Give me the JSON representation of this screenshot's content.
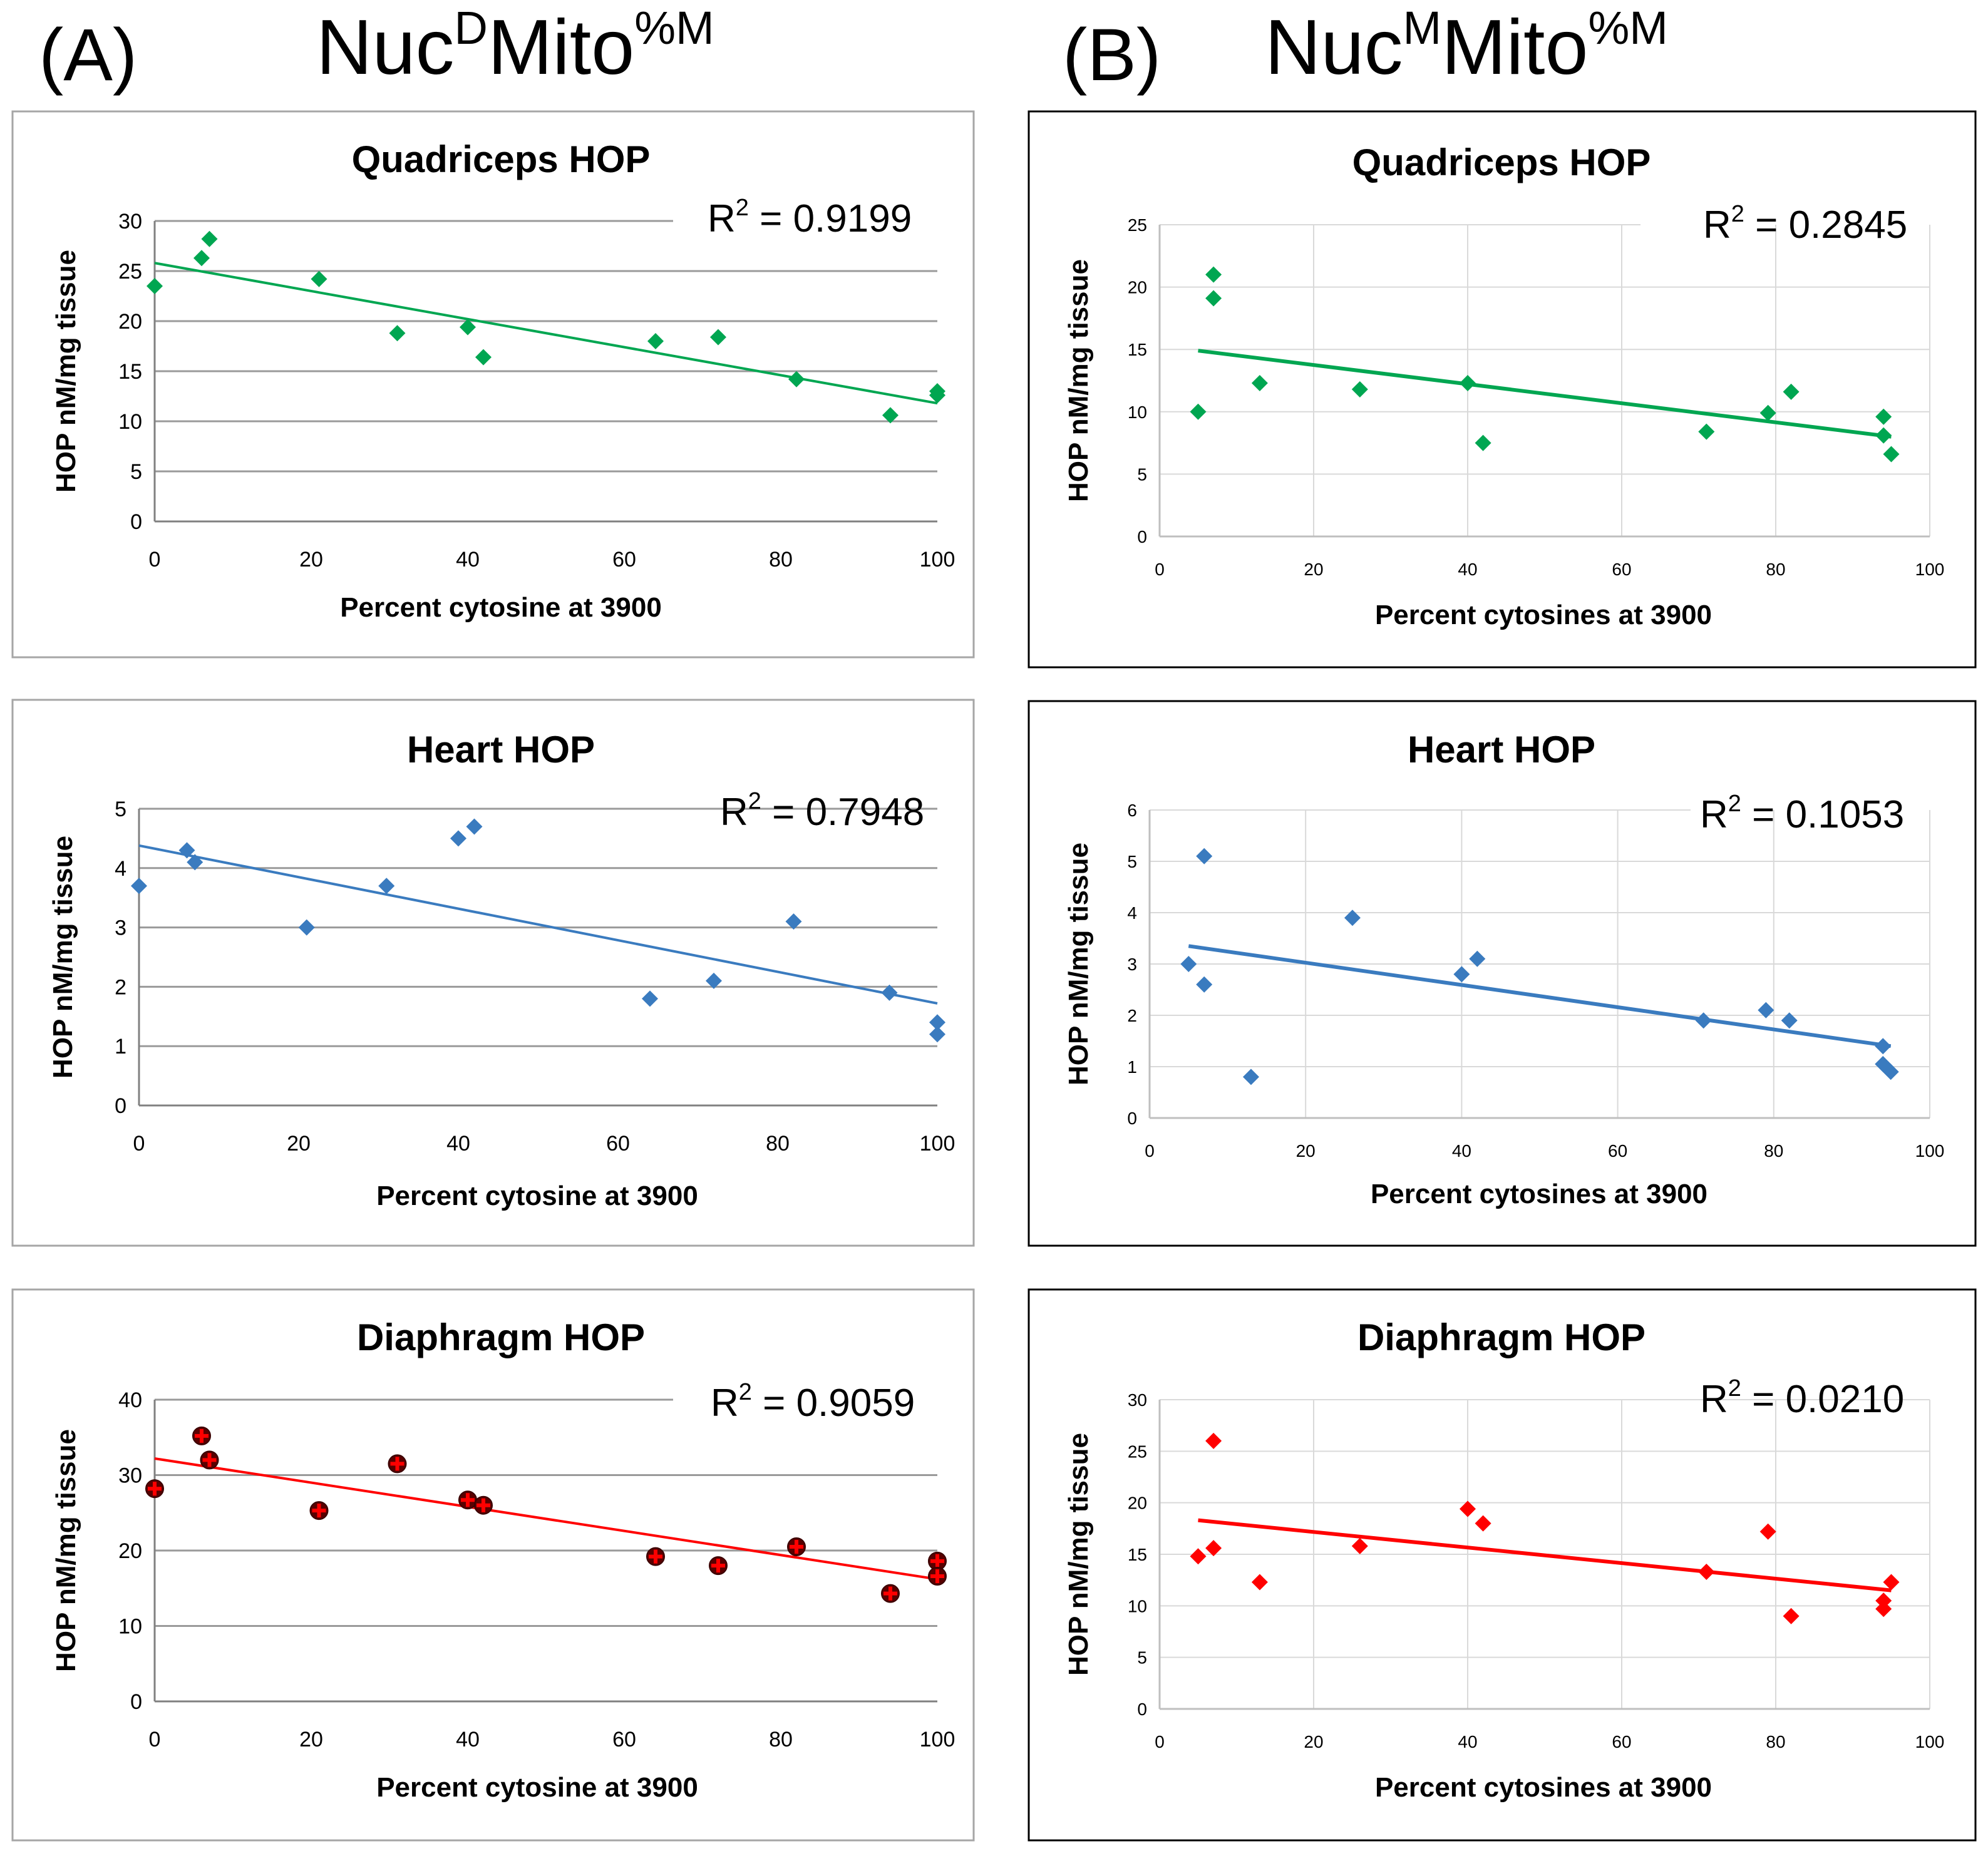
{
  "figure": {
    "panel_A": {
      "label": "(A)",
      "heading_base": "Nuc",
      "heading_sup1": "D",
      "heading_mid": "Mito",
      "heading_sup2": "%M"
    },
    "panel_B": {
      "label": "(B)",
      "heading_base": "Nuc",
      "heading_sup1": "M",
      "heading_mid": "Mito",
      "heading_sup2": "%M"
    }
  },
  "colors": {
    "green": "#00a651",
    "blue": "#3a7bbf",
    "red": "#ff0000",
    "frame_A": "#a6a6a6",
    "frame_B": "#000000",
    "grid": "#a0a0a0"
  },
  "chart_data": [
    {
      "id": "A-quad",
      "panel": "A",
      "type": "scatter",
      "style": "A",
      "title": "Quadriceps HOP",
      "xlabel": "Percent cytosine at 3900",
      "ylabel": "HOP nM/mg tissue",
      "r2_label": "R",
      "r2_sup": "2",
      "r2_value": " = 0.9199",
      "xlim": [
        0,
        100
      ],
      "ylim": [
        0,
        30
      ],
      "xticks": [
        0,
        20,
        40,
        60,
        80,
        100
      ],
      "yticks": [
        0,
        5,
        10,
        15,
        20,
        25,
        30
      ],
      "color": "#00a651",
      "marker": "diamond",
      "x": [
        0,
        6,
        7,
        21,
        31,
        40,
        42,
        64,
        72,
        82,
        94,
        100,
        100
      ],
      "y": [
        23.5,
        26.3,
        28.2,
        24.2,
        18.8,
        19.4,
        16.4,
        18,
        18.4,
        14.2,
        10.6,
        13,
        12.6
      ],
      "fit": [
        [
          0,
          25.8
        ],
        [
          100,
          11.8
        ]
      ]
    },
    {
      "id": "A-heart",
      "panel": "A",
      "type": "scatter",
      "style": "A",
      "title": "Heart HOP",
      "xlabel": "Percent cytosine at 3900",
      "ylabel": "HOP nM/mg tissue",
      "r2_label": "R",
      "r2_sup": "2",
      "r2_value": " = 0.7948",
      "xlim": [
        0,
        100
      ],
      "ylim": [
        0,
        5
      ],
      "xticks": [
        0,
        20,
        40,
        60,
        80,
        100
      ],
      "yticks": [
        0,
        1,
        2,
        3,
        4,
        5
      ],
      "color": "#3a7bbf",
      "marker": "diamond",
      "x": [
        0,
        6,
        7,
        21,
        31,
        40,
        42,
        64,
        72,
        82,
        94,
        100,
        100
      ],
      "y": [
        3.7,
        4.3,
        4.1,
        3.0,
        3.7,
        4.5,
        4.7,
        1.8,
        2.1,
        3.1,
        1.9,
        1.4,
        1.2
      ],
      "fit": [
        [
          0,
          4.38
        ],
        [
          100,
          1.72
        ]
      ]
    },
    {
      "id": "A-diaph",
      "panel": "A",
      "type": "scatter",
      "style": "A",
      "title": "Diaphragm HOP",
      "xlabel": "Percent cytosine at 3900",
      "ylabel": "HOP nM/mg tissue",
      "r2_label": "R",
      "r2_sup": "2",
      "r2_value": " = 0.9059",
      "xlim": [
        0,
        100
      ],
      "ylim": [
        0,
        40
      ],
      "xticks": [
        0,
        20,
        40,
        60,
        80,
        100
      ],
      "yticks": [
        0,
        10,
        20,
        30,
        40
      ],
      "color": "#ff0000",
      "marker": "cross",
      "x": [
        0,
        6,
        7,
        21,
        31,
        40,
        42,
        64,
        72,
        82,
        94,
        100,
        100
      ],
      "y": [
        28.2,
        35.2,
        32,
        25.3,
        31.5,
        26.7,
        26,
        19.2,
        18,
        20.5,
        14.3,
        18.6,
        16.6
      ],
      "fit": [
        [
          0,
          32.2
        ],
        [
          100,
          16.2
        ]
      ]
    },
    {
      "id": "B-quad",
      "panel": "B",
      "type": "scatter",
      "style": "B",
      "title": "Quadriceps HOP",
      "xlabel": "Percent cytosines at 3900",
      "ylabel": "HOP nM/mg tissue",
      "r2_label": "R",
      "r2_sup": "2",
      "r2_value": " = 0.2845",
      "xlim": [
        0,
        100
      ],
      "ylim": [
        0,
        25
      ],
      "xticks": [
        0,
        20,
        40,
        60,
        80,
        100
      ],
      "yticks": [
        0,
        5,
        10,
        15,
        20,
        25
      ],
      "color": "#00a651",
      "marker": "diamond",
      "x": [
        5,
        7,
        7,
        13,
        26,
        40,
        42,
        71,
        79,
        82,
        94,
        94,
        95
      ],
      "y": [
        10,
        21,
        19.1,
        12.3,
        11.8,
        12.3,
        7.5,
        8.4,
        9.9,
        11.6,
        9.6,
        8.1,
        6.6
      ],
      "fit": [
        [
          5,
          14.9
        ],
        [
          95,
          8.0
        ]
      ]
    },
    {
      "id": "B-heart",
      "panel": "B",
      "type": "scatter",
      "style": "B",
      "title": "Heart HOP",
      "xlabel": "Percent cytosines at 3900",
      "ylabel": "HOP nM/mg tissue",
      "r2_label": "R",
      "r2_sup": "2",
      "r2_value": " = 0.1053",
      "xlim": [
        0,
        100
      ],
      "ylim": [
        0,
        6
      ],
      "xticks": [
        0,
        20,
        40,
        60,
        80,
        100
      ],
      "yticks": [
        0,
        1,
        2,
        3,
        4,
        5,
        6
      ],
      "color": "#3a7bbf",
      "marker": "diamond",
      "x": [
        5,
        7,
        7,
        13,
        26,
        40,
        42,
        71,
        79,
        82,
        94,
        94,
        95
      ],
      "y": [
        3.0,
        5.1,
        2.6,
        0.8,
        3.9,
        2.8,
        3.1,
        1.9,
        2.1,
        1.9,
        1.4,
        1.05,
        0.9
      ],
      "fit": [
        [
          5,
          3.35
        ],
        [
          95,
          1.4
        ]
      ]
    },
    {
      "id": "B-diaph",
      "panel": "B",
      "type": "scatter",
      "style": "B",
      "title": "Diaphragm HOP",
      "xlabel": "Percent cytosines at 3900",
      "ylabel": "HOP nM/mg tissue",
      "r2_label": "R",
      "r2_sup": "2",
      "r2_value": " = 0.0210",
      "xlim": [
        0,
        100
      ],
      "ylim": [
        0,
        30
      ],
      "xticks": [
        0,
        20,
        40,
        60,
        80,
        100
      ],
      "yticks": [
        0,
        5,
        10,
        15,
        20,
        25,
        30
      ],
      "color": "#ff0000",
      "marker": "diamond",
      "x": [
        5,
        7,
        7,
        13,
        26,
        40,
        42,
        71,
        79,
        82,
        94,
        94,
        95
      ],
      "y": [
        14.8,
        26,
        15.6,
        12.3,
        15.8,
        19.4,
        18,
        13.3,
        17.2,
        9,
        10.5,
        9.7,
        12.3
      ],
      "fit": [
        [
          5,
          18.3
        ],
        [
          95,
          11.5
        ]
      ]
    }
  ]
}
